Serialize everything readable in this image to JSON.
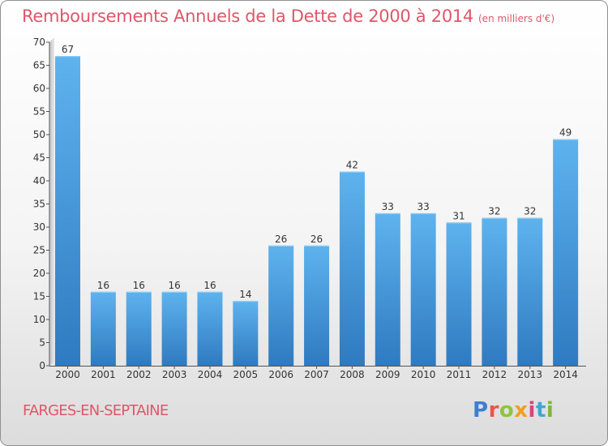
{
  "header": {
    "title": "Remboursements Annuels de la Dette de 2000 à 2014",
    "unit": "(en milliers d'€)"
  },
  "footer": {
    "commune": "FARGES-EN-SEPTAINE",
    "brand": "Proxiti"
  },
  "chart_data": {
    "type": "bar",
    "title": "Remboursements Annuels de la Dette de 2000 à 2014",
    "subtitle": "(en milliers d'€)",
    "xlabel": "",
    "ylabel": "",
    "categories": [
      "2000",
      "2001",
      "2002",
      "2003",
      "2004",
      "2005",
      "2006",
      "2007",
      "2008",
      "2009",
      "2010",
      "2011",
      "2012",
      "2013",
      "2014"
    ],
    "values": [
      67,
      16,
      16,
      16,
      16,
      14,
      26,
      26,
      42,
      33,
      33,
      31,
      32,
      32,
      49
    ],
    "ylim": [
      0,
      70
    ],
    "yticks": [
      0,
      5,
      10,
      15,
      20,
      25,
      30,
      35,
      40,
      45,
      50,
      55,
      60,
      65,
      70
    ],
    "grid": false,
    "bar_color": "#3f8fd6",
    "legend": "none"
  }
}
